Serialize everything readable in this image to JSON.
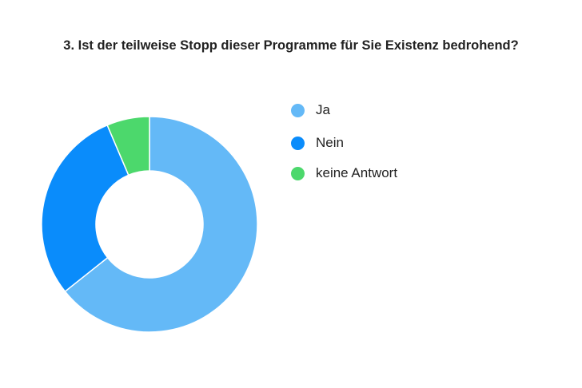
{
  "chart_data": {
    "type": "pie",
    "donut": true,
    "title": "3. Ist der teilweise Stopp dieser Programme für Sie Existenz bedrohend?",
    "categories": [
      "Ja",
      "Nein",
      "keine Antwort"
    ],
    "values": [
      64.3,
      29.3,
      6.4
    ],
    "colors": [
      "#64b9f7",
      "#0a8cfb",
      "#4cd86c"
    ],
    "legend_placement": "right"
  }
}
